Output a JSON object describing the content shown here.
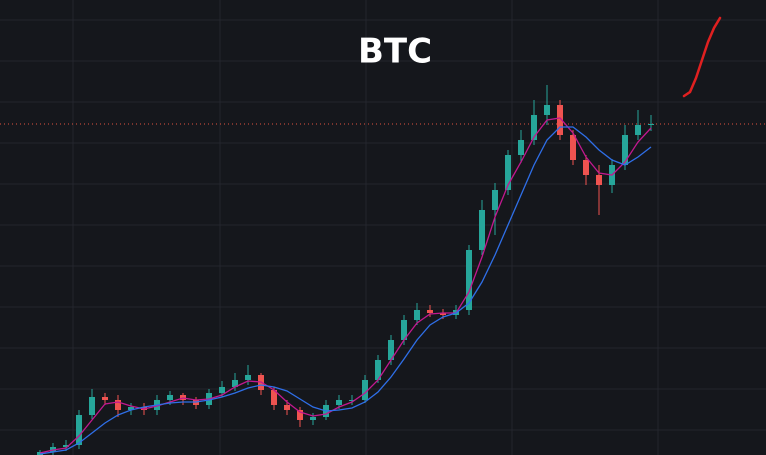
{
  "chart_data": {
    "type": "candlestick",
    "title": "BTC",
    "open": [
      0,
      3,
      8,
      10,
      40,
      58,
      55,
      45,
      48,
      45,
      55,
      60,
      55,
      50,
      62,
      68,
      75,
      80,
      65,
      50,
      45,
      35,
      38,
      50,
      55,
      55,
      75,
      95,
      115,
      135,
      145,
      142,
      140,
      145,
      205,
      245,
      265,
      300,
      315,
      340,
      350,
      320,
      295,
      280,
      270,
      290,
      320,
      330
    ],
    "high": [
      5,
      12,
      15,
      45,
      66,
      62,
      60,
      52,
      52,
      60,
      64,
      62,
      58,
      66,
      74,
      82,
      90,
      82,
      68,
      55,
      48,
      42,
      55,
      60,
      60,
      80,
      100,
      120,
      140,
      152,
      150,
      146,
      150,
      210,
      255,
      272,
      305,
      325,
      355,
      370,
      355,
      325,
      300,
      290,
      296,
      330,
      345,
      340
    ],
    "low": [
      -2,
      0,
      4,
      6,
      36,
      50,
      38,
      40,
      40,
      40,
      50,
      50,
      46,
      46,
      58,
      64,
      70,
      60,
      45,
      40,
      28,
      30,
      35,
      46,
      50,
      52,
      72,
      90,
      110,
      130,
      138,
      136,
      136,
      140,
      200,
      220,
      260,
      292,
      310,
      330,
      315,
      290,
      270,
      240,
      262,
      285,
      315,
      324
    ],
    "close": [
      3,
      8,
      10,
      40,
      58,
      55,
      45,
      48,
      45,
      55,
      60,
      55,
      50,
      62,
      68,
      75,
      80,
      65,
      50,
      45,
      35,
      38,
      50,
      55,
      55,
      75,
      95,
      115,
      135,
      145,
      142,
      140,
      145,
      205,
      245,
      265,
      300,
      315,
      340,
      350,
      320,
      295,
      280,
      270,
      290,
      320,
      330,
      331
    ],
    "up_color": "#26a69a",
    "down_color": "#ef5350",
    "series": [
      {
        "color": "#c2188f",
        "values": [
          2,
          5,
          7,
          19,
          35,
          51,
          53,
          49,
          46,
          49,
          53,
          57,
          55,
          56,
          60,
          68,
          74,
          73,
          65,
          53,
          43,
          39,
          41,
          48,
          53,
          62,
          75,
          95,
          115,
          132,
          141,
          142,
          142,
          163,
          198,
          238,
          270,
          293,
          318,
          335,
          337,
          322,
          298,
          282,
          280,
          293,
          313,
          327
        ]
      },
      {
        "color": "#2f6fe8",
        "values": [
          1,
          3,
          5,
          12,
          22,
          32,
          40,
          45,
          48,
          50,
          52,
          53,
          53,
          55,
          58,
          62,
          67,
          70,
          68,
          64,
          56,
          48,
          44,
          45,
          47,
          53,
          63,
          78,
          96,
          115,
          130,
          138,
          142,
          152,
          173,
          200,
          230,
          260,
          290,
          315,
          328,
          328,
          318,
          305,
          295,
          290,
          298,
          308
        ]
      }
    ],
    "price_line": 331,
    "price_line_color": "#e0533f",
    "ylim": [
      0,
      455
    ]
  }
}
